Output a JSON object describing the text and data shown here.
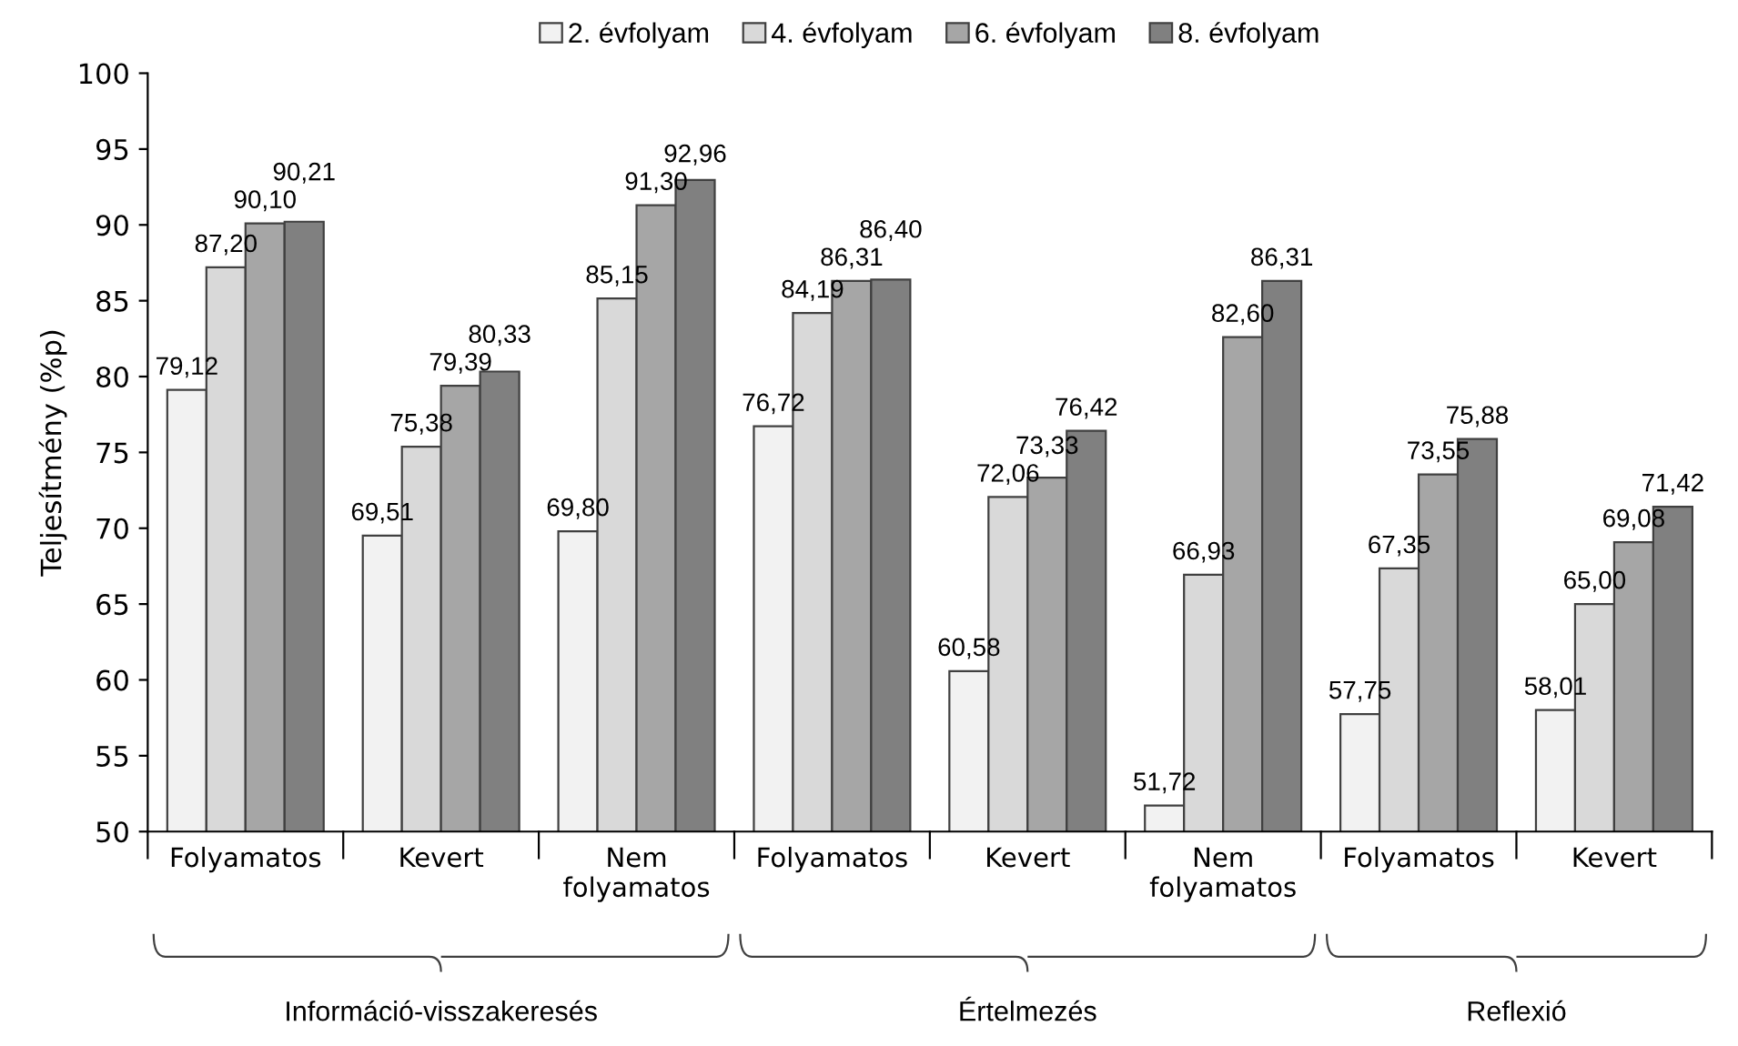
{
  "chart_data": {
    "type": "bar",
    "ylabel": "Teljesítmény (%p)",
    "categories": [
      "Folyamatos",
      "Kevert",
      "Nem\nfolyamatos",
      "Folyamatos",
      "Kevert",
      "Nem\nfolyamatos",
      "Folyamatos",
      "Kevert"
    ],
    "series": [
      {
        "name": "2. évfolyam",
        "color": "#f2f2f2",
        "values": [
          79.12,
          69.51,
          69.8,
          76.72,
          60.58,
          51.72,
          57.75,
          58.01
        ],
        "value_labels": [
          "79,12",
          "69,51",
          "69,80",
          "76,72",
          "60,58",
          "51,72",
          "57,75",
          "58,01"
        ]
      },
      {
        "name": "4. évfolyam",
        "color": "#d9d9d9",
        "values": [
          87.2,
          75.38,
          85.15,
          84.19,
          72.06,
          66.93,
          67.35,
          65.0
        ],
        "value_labels": [
          "87,20",
          "75,38",
          "85,15",
          "84,19",
          "72,06",
          "66,93",
          "67,35",
          "65,00"
        ]
      },
      {
        "name": "6. évfolyam",
        "color": "#a6a6a6",
        "values": [
          90.1,
          79.39,
          91.3,
          86.31,
          73.33,
          82.6,
          73.55,
          69.08
        ],
        "value_labels": [
          "90,10",
          "79,39",
          "91,30",
          "86,31",
          "73,33",
          "82,60",
          "73,55",
          "69,08"
        ]
      },
      {
        "name": "8. évfolyam",
        "color": "#808080",
        "values": [
          90.21,
          80.33,
          92.96,
          86.4,
          76.42,
          86.31,
          75.88,
          71.42
        ],
        "value_labels": [
          "90,21",
          "80,33",
          "92,96",
          "86,40",
          "76,42",
          "86,31",
          "75,88",
          "71,42"
        ]
      }
    ],
    "ylim": [
      50,
      100
    ],
    "yticks": [
      50,
      55,
      60,
      65,
      70,
      75,
      80,
      85,
      90,
      95,
      100
    ],
    "grid": false,
    "legend": "top",
    "annotations": [
      "Információ-visszakeresés",
      "Értelmezés",
      "Reflexió"
    ]
  }
}
